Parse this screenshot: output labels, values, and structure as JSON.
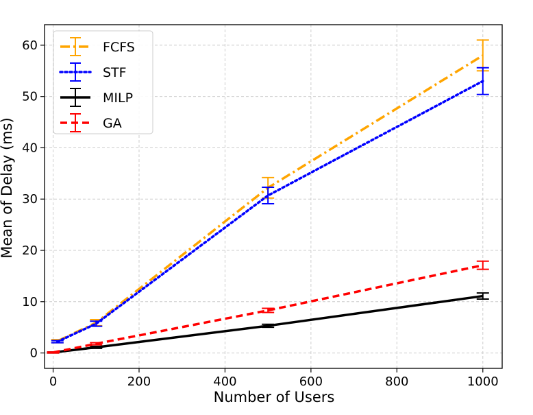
{
  "chart_data": {
    "type": "line",
    "title": "",
    "xlabel": "Number of Users",
    "ylabel": "Mean of Delay (ms)",
    "xlim": [
      -20,
      1045
    ],
    "ylim": [
      -3,
      64
    ],
    "xticks": [
      0,
      200,
      400,
      600,
      800,
      1000
    ],
    "yticks": [
      0,
      10,
      20,
      30,
      40,
      50,
      60
    ],
    "grid": true,
    "legend": "top-left",
    "series": [
      {
        "name": "FCFS",
        "color": "#FFA500",
        "style": "dashdot",
        "x": [
          10,
          100,
          500,
          1000
        ],
        "y": [
          2.3,
          5.9,
          32.2,
          58.0
        ],
        "err": [
          0.3,
          0.6,
          2.0,
          3.0
        ]
      },
      {
        "name": "STF",
        "color": "#0000FF",
        "style": "dotted",
        "x": [
          10,
          100,
          500,
          1000
        ],
        "y": [
          2.2,
          5.7,
          30.7,
          53.0
        ],
        "err": [
          0.2,
          0.5,
          1.6,
          2.6
        ]
      },
      {
        "name": "MILP",
        "color": "#000000",
        "style": "solid",
        "x": [
          0,
          100,
          500,
          1000
        ],
        "y": [
          0.1,
          1.1,
          5.3,
          11.1
        ],
        "err": [
          0.1,
          0.2,
          0.3,
          0.6
        ]
      },
      {
        "name": "GA",
        "color": "#FF0000",
        "style": "dashed",
        "x": [
          0,
          100,
          500,
          1000
        ],
        "y": [
          0.1,
          1.8,
          8.3,
          17.1
        ],
        "err": [
          0.1,
          0.2,
          0.4,
          0.8
        ]
      }
    ]
  }
}
